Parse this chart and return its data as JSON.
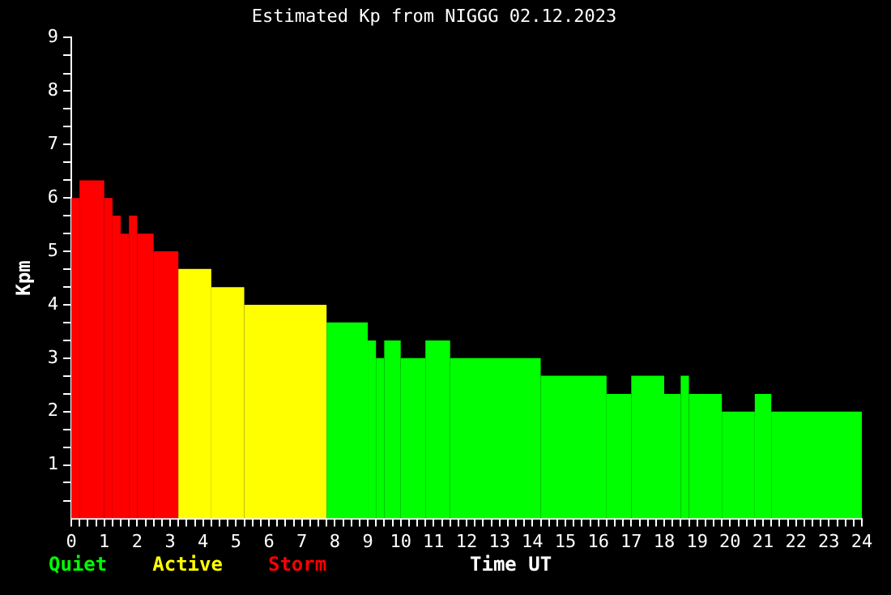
{
  "chart_data": {
    "type": "histogram",
    "title": "Estimated Kp from NIGGG 02.12.2023",
    "xlabel": "Time UT",
    "ylabel": "Kpm",
    "bins": [
      0,
      0.25,
      1,
      1.25,
      1.5,
      1.75,
      2,
      2.5,
      3.25,
      4.25,
      5.25,
      7.75,
      9,
      9.25,
      9.5,
      10,
      10.75,
      11.5,
      14.25,
      16.25,
      17,
      18,
      18.5,
      18.75,
      19.75,
      20.75,
      21.25,
      24
    ],
    "series": [
      {
        "name": "Quiet",
        "color": "#00ff00",
        "values": [
          null,
          null,
          null,
          null,
          null,
          null,
          null,
          null,
          null,
          null,
          null,
          3.67,
          3.33,
          3,
          3.33,
          3,
          3.33,
          3,
          2.67,
          2.33,
          2.67,
          2.33,
          2.67,
          2.33,
          2,
          2.33,
          2
        ]
      },
      {
        "name": "Active",
        "color": "#ffff00",
        "values": [
          null,
          null,
          null,
          null,
          null,
          null,
          null,
          null,
          4.67,
          4.33,
          4,
          null,
          null,
          null,
          null,
          null,
          null,
          null,
          null,
          null,
          null,
          null,
          null,
          null,
          null,
          null,
          null
        ]
      },
      {
        "name": "Storm",
        "color": "#ff0000",
        "values": [
          6,
          6.33,
          6,
          5.67,
          5.33,
          5.67,
          5.33,
          5,
          null,
          null,
          null,
          null,
          null,
          null,
          null,
          null,
          null,
          null,
          null,
          null,
          null,
          null,
          null,
          null,
          null,
          null,
          null
        ]
      }
    ],
    "xlim": [
      0,
      24
    ],
    "xticks": [
      0,
      {
        "value": 0.25,
        "label": null
      },
      {
        "value": 0.5,
        "label": null
      },
      {
        "value": 0.75,
        "label": null
      },
      1,
      {
        "value": 1.25,
        "label": null
      },
      {
        "value": 1.5,
        "label": null
      },
      {
        "value": 1.75,
        "label": null
      },
      2,
      {
        "value": 2.25,
        "label": null
      },
      {
        "value": 2.5,
        "label": null
      },
      {
        "value": 2.75,
        "label": null
      },
      3,
      {
        "value": 3.25,
        "label": null
      },
      {
        "value": 3.5,
        "label": null
      },
      {
        "value": 3.75,
        "label": null
      },
      4,
      {
        "value": 4.25,
        "label": null
      },
      {
        "value": 4.5,
        "label": null
      },
      {
        "value": 4.75,
        "label": null
      },
      5,
      {
        "value": 5.25,
        "label": null
      },
      {
        "value": 5.5,
        "label": null
      },
      {
        "value": 5.75,
        "label": null
      },
      6,
      {
        "value": 6.25,
        "label": null
      },
      {
        "value": 6.5,
        "label": null
      },
      {
        "value": 6.75,
        "label": null
      },
      7,
      {
        "value": 7.25,
        "label": null
      },
      {
        "value": 7.5,
        "label": null
      },
      {
        "value": 7.75,
        "label": null
      },
      8,
      {
        "value": 8.25,
        "label": null
      },
      {
        "value": 8.5,
        "label": null
      },
      {
        "value": 8.75,
        "label": null
      },
      9,
      {
        "value": 9.25,
        "label": null
      },
      {
        "value": 9.5,
        "label": null
      },
      {
        "value": 9.75,
        "label": null
      },
      10,
      {
        "value": 10.25,
        "label": null
      },
      {
        "value": 10.5,
        "label": null
      },
      {
        "value": 10.75,
        "label": null
      },
      11,
      {
        "value": 11.25,
        "label": null
      },
      {
        "value": 11.5,
        "label": null
      },
      {
        "value": 11.75,
        "label": null
      },
      12,
      {
        "value": 12.25,
        "label": null
      },
      {
        "value": 12.5,
        "label": null
      },
      {
        "value": 12.75,
        "label": null
      },
      13,
      {
        "value": 13.25,
        "label": null
      },
      {
        "value": 13.5,
        "label": null
      },
      {
        "value": 13.75,
        "label": null
      },
      14,
      {
        "value": 14.25,
        "label": null
      },
      {
        "value": 14.5,
        "label": null
      },
      {
        "value": 14.75,
        "label": null
      },
      15,
      {
        "value": 15.25,
        "label": null
      },
      {
        "value": 15.5,
        "label": null
      },
      {
        "value": 15.75,
        "label": null
      },
      16,
      {
        "value": 16.25,
        "label": null
      },
      {
        "value": 16.5,
        "label": null
      },
      {
        "value": 16.75,
        "label": null
      },
      17,
      {
        "value": 17.25,
        "label": null
      },
      {
        "value": 17.5,
        "label": null
      },
      {
        "value": 17.75,
        "label": null
      },
      18,
      {
        "value": 18.25,
        "label": null
      },
      {
        "value": 18.5,
        "label": null
      },
      {
        "value": 18.75,
        "label": null
      },
      19,
      {
        "value": 19.25,
        "label": null
      },
      {
        "value": 19.5,
        "label": null
      },
      {
        "value": 19.75,
        "label": null
      },
      20,
      {
        "value": 20.25,
        "label": null
      },
      {
        "value": 20.5,
        "label": null
      },
      {
        "value": 20.75,
        "label": null
      },
      21,
      {
        "value": 21.25,
        "label": null
      },
      {
        "value": 21.5,
        "label": null
      },
      {
        "value": 21.75,
        "label": null
      },
      22,
      {
        "value": 22.25,
        "label": null
      },
      {
        "value": 22.5,
        "label": null
      },
      {
        "value": 22.75,
        "label": null
      },
      23,
      {
        "value": 23.25,
        "label": null
      },
      {
        "value": 23.5,
        "label": null
      },
      {
        "value": 23.75,
        "label": null
      },
      24
    ],
    "ylim": [
      0,
      9
    ],
    "yticks": [
      {
        "value": 0.33,
        "label": null
      },
      {
        "value": 0.67,
        "label": null
      },
      1,
      {
        "value": 1.33,
        "label": null
      },
      {
        "value": 1.67,
        "label": null
      },
      2,
      {
        "value": 2.33,
        "label": null
      },
      {
        "value": 2.67,
        "label": null
      },
      3,
      {
        "value": 3.33,
        "label": null
      },
      {
        "value": 3.67,
        "label": null
      },
      4,
      {
        "value": 4.33,
        "label": null
      },
      {
        "value": 4.67,
        "label": null
      },
      5,
      {
        "value": 5.33,
        "label": null
      },
      {
        "value": 5.67,
        "label": null
      },
      6,
      {
        "value": 6.33,
        "label": null
      },
      {
        "value": 6.67,
        "label": null
      },
      7,
      {
        "value": 7.33,
        "label": null
      },
      {
        "value": 7.67,
        "label": null
      },
      8,
      {
        "value": 8.33,
        "label": null
      },
      {
        "value": 8.67,
        "label": null
      },
      9
    ],
    "grid": false,
    "legend": "bottom left"
  }
}
